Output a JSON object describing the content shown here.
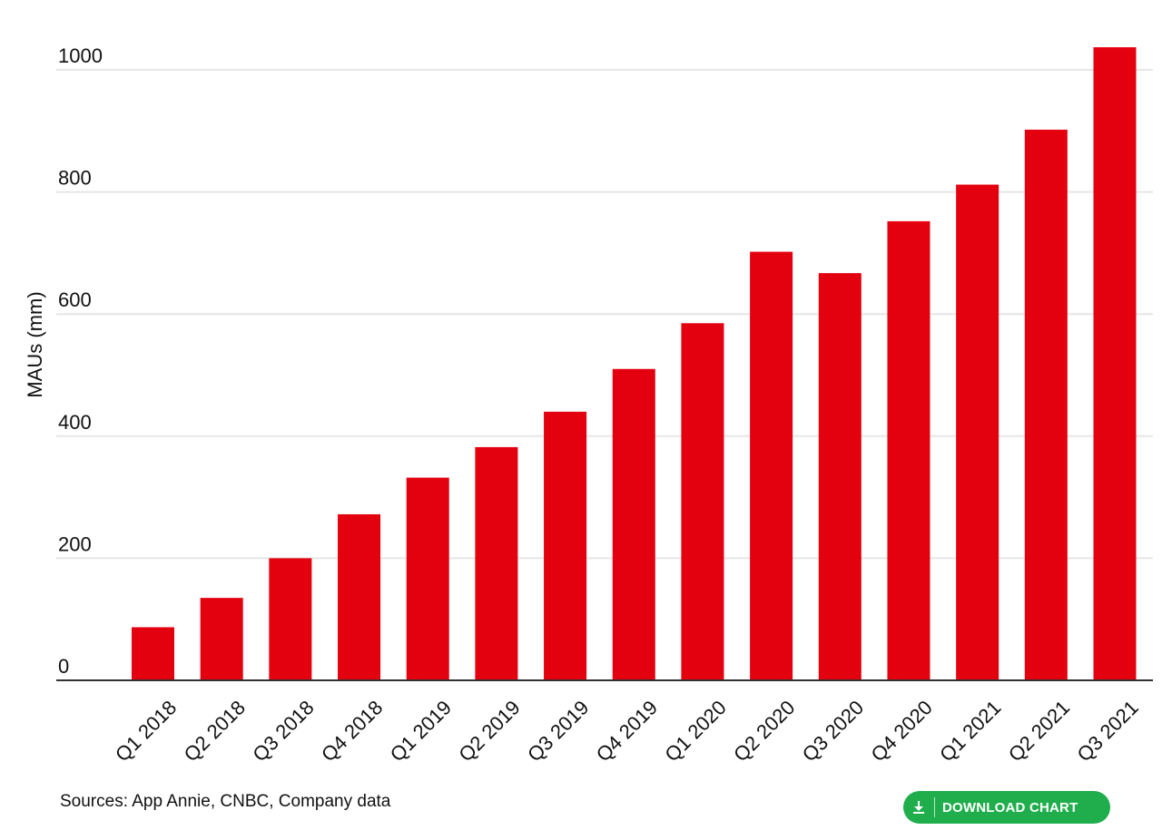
{
  "chart_data": {
    "type": "bar",
    "categories": [
      "Q1 2018",
      "Q2 2018",
      "Q3 2018",
      "Q4 2018",
      "Q1 2019",
      "Q2 2019",
      "Q3 2019",
      "Q4 2019",
      "Q1 2020",
      "Q2 2020",
      "Q3 2020",
      "Q4 2020",
      "Q1 2021",
      "Q2 2021",
      "Q3 2021"
    ],
    "values": [
      87,
      135,
      200,
      272,
      332,
      382,
      440,
      510,
      585,
      702,
      667,
      752,
      812,
      902,
      1037
    ],
    "title": "",
    "xlabel": "",
    "ylabel": "MAUs (mm)",
    "ylim": [
      0,
      1000
    ],
    "yticks": [
      0,
      200,
      400,
      600,
      800,
      1000
    ],
    "grid": true,
    "legend": "none",
    "bar_color": "#e3000f"
  },
  "footer": {
    "source": "Sources: App Annie, CNBC, Company data",
    "download_label": "DOWNLOAD CHART",
    "download_icon": "download-icon",
    "download_color": "#1fae4b"
  }
}
